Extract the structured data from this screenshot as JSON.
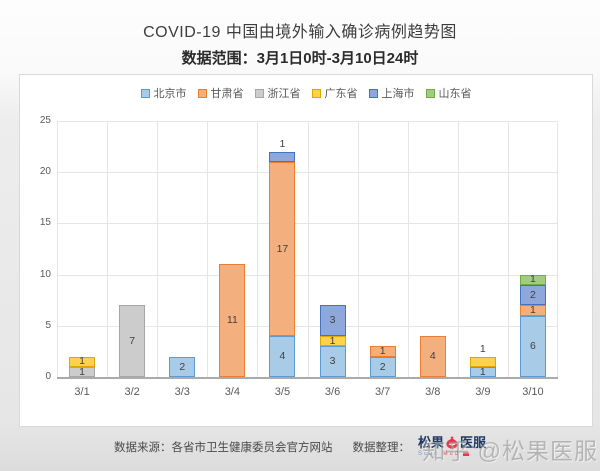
{
  "page": {
    "title": "COVID-19 中国由境外输入确诊病例趋势图",
    "subtitle": "数据范围：3月1日0时-3月10日24时"
  },
  "chart_data": {
    "type": "bar",
    "stacked": true,
    "title": "COVID-19 中国由境外输入确诊病例趋势图",
    "subtitle": "数据范围：3月1日0时-3月10日24时",
    "xlabel": "",
    "ylabel": "",
    "ylim": [
      0,
      25
    ],
    "yticks": [
      0,
      5,
      10,
      15,
      20,
      25
    ],
    "grid": true,
    "legend_position": "top",
    "categories": [
      "3/1",
      "3/2",
      "3/3",
      "3/4",
      "3/5",
      "3/6",
      "3/7",
      "3/8",
      "3/9",
      "3/10"
    ],
    "series": [
      {
        "name": "北京市",
        "fill": "#A8CBE8",
        "border": "#5B9BD5",
        "values": [
          0,
          0,
          2,
          0,
          4,
          3,
          2,
          0,
          1,
          6
        ]
      },
      {
        "name": "甘肃省",
        "fill": "#F3B07E",
        "border": "#ED7D31",
        "values": [
          0,
          0,
          0,
          11,
          17,
          0,
          1,
          4,
          0,
          1
        ]
      },
      {
        "name": "浙江省",
        "fill": "#CCCCCC",
        "border": "#A6A6A6",
        "values": [
          1,
          7,
          0,
          0,
          0,
          0,
          0,
          0,
          0,
          0
        ]
      },
      {
        "name": "广东省",
        "fill": "#FFD24D",
        "border": "#DFA800",
        "values": [
          1,
          0,
          0,
          0,
          0,
          1,
          0,
          0,
          1,
          0
        ]
      },
      {
        "name": "上海市",
        "fill": "#8FA8DB",
        "border": "#4472C4",
        "values": [
          0,
          0,
          0,
          0,
          1,
          3,
          0,
          0,
          0,
          2
        ]
      },
      {
        "name": "山东省",
        "fill": "#A3CC80",
        "border": "#70AD47",
        "values": [
          0,
          0,
          0,
          0,
          0,
          0,
          0,
          0,
          0,
          1
        ]
      }
    ],
    "totals": [
      2,
      7,
      2,
      11,
      22,
      7,
      3,
      4,
      2,
      10
    ],
    "labels_above": [
      {
        "category": "3/5",
        "series": "上海市"
      },
      {
        "category": "3/9",
        "series": "广东省"
      }
    ]
  },
  "footer": {
    "source_label": "数据来源：各省市卫生健康委员会官方网站",
    "curation_label": "数据整理：",
    "logo": {
      "text_left": "松果",
      "text_right": "医服",
      "subtext_scan": "Scan",
      "subtext_med": "Med",
      "icon": "pinecone-pot-icon",
      "brand_red": "#e8374a",
      "brand_navy": "#203864"
    },
    "watermark": "知乎 @松果医服"
  }
}
